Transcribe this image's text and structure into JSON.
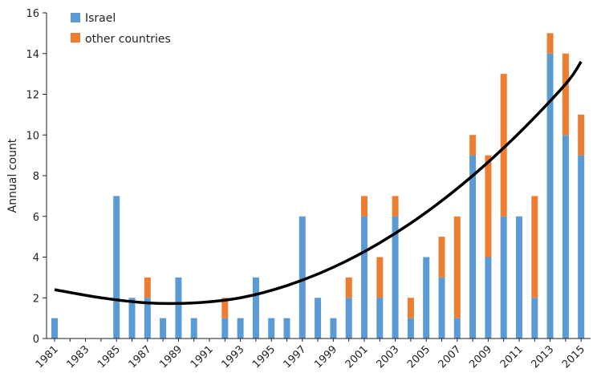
{
  "chart_data": {
    "type": "bar",
    "stacked": true,
    "title": "",
    "xlabel": "",
    "ylabel": "Annual count",
    "ylim": [
      0,
      16
    ],
    "yticks": [
      0,
      2,
      4,
      6,
      8,
      10,
      12,
      14,
      16
    ],
    "xticks": [
      "1981",
      "1983",
      "1985",
      "1987",
      "1989",
      "1991",
      "1993",
      "1995",
      "1997",
      "1999",
      "2001",
      "2003",
      "2005",
      "2007",
      "2009",
      "2011",
      "2013",
      "2015"
    ],
    "categories": [
      "1981",
      "1982",
      "1983",
      "1984",
      "1985",
      "1986",
      "1987",
      "1988",
      "1989",
      "1990",
      "1991",
      "1992",
      "1993",
      "1994",
      "1995",
      "1996",
      "1997",
      "1998",
      "1999",
      "2000",
      "2001",
      "2002",
      "2003",
      "2004",
      "2005",
      "2006",
      "2007",
      "2008",
      "2009",
      "2010",
      "2011",
      "2012",
      "2013",
      "2014",
      "2015"
    ],
    "series": [
      {
        "name": "Israel",
        "color": "#5b9bd5",
        "values": [
          1,
          0,
          0,
          0,
          7,
          2,
          2,
          1,
          3,
          1,
          0,
          1,
          1,
          3,
          1,
          1,
          6,
          2,
          1,
          2,
          6,
          2,
          6,
          1,
          4,
          3,
          1,
          9,
          4,
          6,
          6,
          2,
          14,
          10,
          9
        ]
      },
      {
        "name": "other countries",
        "color": "#ed7d31",
        "values": [
          0,
          0,
          0,
          0,
          0,
          0,
          1,
          0,
          0,
          0,
          0,
          1,
          0,
          0,
          0,
          0,
          0,
          0,
          0,
          1,
          1,
          2,
          1,
          1,
          0,
          2,
          5,
          1,
          5,
          7,
          0,
          5,
          1,
          4,
          2
        ]
      }
    ],
    "trendline": {
      "type": "polynomial-2",
      "color": "#000000",
      "points": [
        [
          1981,
          2.4
        ],
        [
          1984,
          2.0
        ],
        [
          1987,
          1.75
        ],
        [
          1990,
          1.75
        ],
        [
          1993,
          2.0
        ],
        [
          1996,
          2.6
        ],
        [
          1999,
          3.5
        ],
        [
          2002,
          4.7
        ],
        [
          2005,
          6.2
        ],
        [
          2008,
          8.0
        ],
        [
          2011,
          10.1
        ],
        [
          2014,
          12.5
        ],
        [
          2015,
          13.6
        ]
      ]
    },
    "legend": {
      "position": "top-left",
      "entries": [
        "Israel",
        "other countries"
      ]
    },
    "grid": false
  }
}
